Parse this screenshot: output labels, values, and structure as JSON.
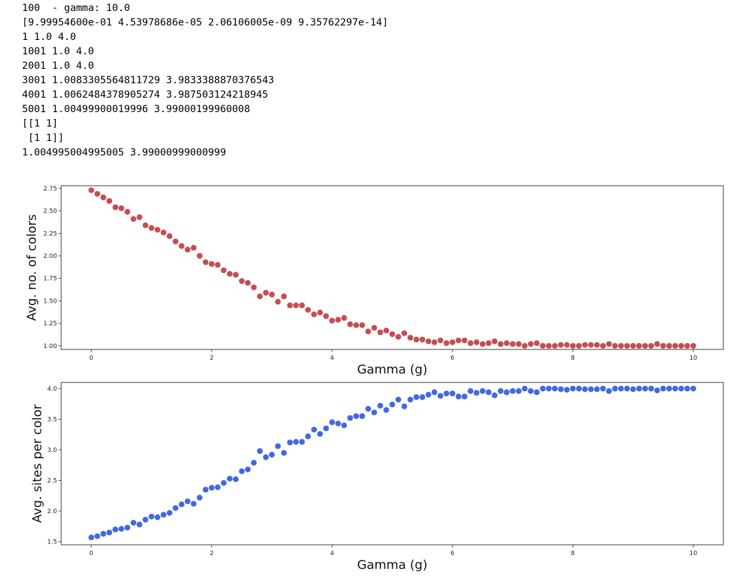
{
  "output_lines": [
    "100  - gamma: 10.0",
    "[9.99954600e-01 4.53978686e-05 2.06106005e-09 9.35762297e-14]",
    "1 1.0 4.0",
    "1001 1.0 4.0",
    "2001 1.0 4.0",
    "3001 1.0083305564811729 3.9833388870376543",
    "4001 1.0062484378905274 3.987503124218945",
    "5001 1.00499900019996 3.99000199960008",
    "[[1 1]",
    " [1 1]]",
    "1.004995004995005 3.99000999000999"
  ],
  "chart_data": [
    {
      "type": "scatter",
      "xlabel": "Gamma (g)",
      "ylabel": "Avg. no. of colors",
      "xlim": [
        -0.5,
        10.5
      ],
      "ylim": [
        0.96,
        2.78
      ],
      "xticks": [
        0,
        2,
        4,
        6,
        8,
        10
      ],
      "xtick_labels": [
        "0",
        "2",
        "4",
        "6",
        "8",
        "10"
      ],
      "yticks": [
        1.0,
        1.25,
        1.5,
        1.75,
        2.0,
        2.25,
        2.5,
        2.75
      ],
      "ytick_labels": [
        "1.00",
        "1.25",
        "1.50",
        "1.75",
        "2.00",
        "2.25",
        "2.50",
        "2.75"
      ],
      "grid": false,
      "color": "#c44e52",
      "x": [
        0.0,
        0.1,
        0.2,
        0.3,
        0.4,
        0.5,
        0.6,
        0.7,
        0.8,
        0.9,
        1.0,
        1.1,
        1.2,
        1.3,
        1.4,
        1.5,
        1.6,
        1.7,
        1.8,
        1.9,
        2.0,
        2.1,
        2.2,
        2.3,
        2.4,
        2.5,
        2.6,
        2.7,
        2.8,
        2.9,
        3.0,
        3.1,
        3.2,
        3.3,
        3.4,
        3.5,
        3.6,
        3.7,
        3.8,
        3.9,
        4.0,
        4.1,
        4.2,
        4.3,
        4.4,
        4.5,
        4.6,
        4.7,
        4.8,
        4.9,
        5.0,
        5.1,
        5.2,
        5.3,
        5.4,
        5.5,
        5.6,
        5.7,
        5.8,
        5.9,
        6.0,
        6.1,
        6.2,
        6.3,
        6.4,
        6.5,
        6.6,
        6.7,
        6.8,
        6.9,
        7.0,
        7.1,
        7.2,
        7.3,
        7.4,
        7.5,
        7.6,
        7.7,
        7.8,
        7.9,
        8.0,
        8.1,
        8.2,
        8.3,
        8.4,
        8.5,
        8.6,
        8.7,
        8.8,
        8.9,
        9.0,
        9.1,
        9.2,
        9.3,
        9.4,
        9.5,
        9.6,
        9.7,
        9.8,
        9.9,
        10.0
      ],
      "y": [
        2.73,
        2.69,
        2.65,
        2.61,
        2.54,
        2.53,
        2.49,
        2.41,
        2.43,
        2.34,
        2.31,
        2.29,
        2.26,
        2.22,
        2.16,
        2.11,
        2.07,
        2.09,
        2.0,
        1.93,
        1.91,
        1.9,
        1.84,
        1.8,
        1.79,
        1.72,
        1.7,
        1.65,
        1.55,
        1.59,
        1.57,
        1.49,
        1.55,
        1.45,
        1.45,
        1.45,
        1.4,
        1.35,
        1.37,
        1.33,
        1.28,
        1.29,
        1.31,
        1.24,
        1.23,
        1.23,
        1.16,
        1.2,
        1.15,
        1.17,
        1.13,
        1.1,
        1.14,
        1.09,
        1.07,
        1.07,
        1.05,
        1.04,
        1.06,
        1.03,
        1.04,
        1.06,
        1.06,
        1.03,
        1.04,
        1.02,
        1.03,
        1.05,
        1.02,
        1.03,
        1.02,
        1.02,
        1.0,
        1.02,
        1.03,
        1.0,
        1.0,
        1.0,
        1.01,
        1.01,
        1.0,
        1.0,
        1.01,
        1.01,
        1.01,
        1.0,
        1.02,
        1.0,
        1.0,
        1.0,
        1.0,
        1.0,
        1.0,
        1.0,
        1.02,
        1.0,
        1.0,
        1.0,
        1.0,
        1.0,
        1.0
      ]
    },
    {
      "type": "scatter",
      "xlabel": "Gamma (g)",
      "ylabel": "Avg. sites per color",
      "xlim": [
        -0.5,
        10.5
      ],
      "ylim": [
        1.45,
        4.1
      ],
      "xticks": [
        0,
        2,
        4,
        6,
        8,
        10
      ],
      "xtick_labels": [
        "0",
        "2",
        "4",
        "6",
        "8",
        "10"
      ],
      "yticks": [
        1.5,
        2.0,
        2.5,
        3.0,
        3.5,
        4.0
      ],
      "ytick_labels": [
        "1.5",
        "2.0",
        "2.5",
        "3.0",
        "3.5",
        "4.0"
      ],
      "grid": false,
      "color": "#4169e1",
      "x": [
        0.0,
        0.1,
        0.2,
        0.3,
        0.4,
        0.5,
        0.6,
        0.7,
        0.8,
        0.9,
        1.0,
        1.1,
        1.2,
        1.3,
        1.4,
        1.5,
        1.6,
        1.7,
        1.8,
        1.9,
        2.0,
        2.1,
        2.2,
        2.3,
        2.4,
        2.5,
        2.6,
        2.7,
        2.8,
        2.9,
        3.0,
        3.1,
        3.2,
        3.3,
        3.4,
        3.5,
        3.6,
        3.7,
        3.8,
        3.9,
        4.0,
        4.1,
        4.2,
        4.3,
        4.4,
        4.5,
        4.6,
        4.7,
        4.8,
        4.9,
        5.0,
        5.1,
        5.2,
        5.3,
        5.4,
        5.5,
        5.6,
        5.7,
        5.8,
        5.9,
        6.0,
        6.1,
        6.2,
        6.3,
        6.4,
        6.5,
        6.6,
        6.7,
        6.8,
        6.9,
        7.0,
        7.1,
        7.2,
        7.3,
        7.4,
        7.5,
        7.6,
        7.7,
        7.8,
        7.9,
        8.0,
        8.1,
        8.2,
        8.3,
        8.4,
        8.5,
        8.6,
        8.7,
        8.8,
        8.9,
        9.0,
        9.1,
        9.2,
        9.3,
        9.4,
        9.5,
        9.6,
        9.7,
        9.8,
        9.9,
        10.0
      ],
      "y": [
        1.57,
        1.59,
        1.63,
        1.65,
        1.7,
        1.71,
        1.73,
        1.81,
        1.78,
        1.86,
        1.91,
        1.9,
        1.94,
        1.97,
        2.05,
        2.11,
        2.16,
        2.12,
        2.22,
        2.35,
        2.38,
        2.39,
        2.46,
        2.53,
        2.52,
        2.65,
        2.68,
        2.79,
        2.98,
        2.88,
        2.92,
        3.06,
        2.95,
        3.12,
        3.13,
        3.13,
        3.22,
        3.33,
        3.26,
        3.35,
        3.45,
        3.43,
        3.4,
        3.52,
        3.55,
        3.55,
        3.67,
        3.61,
        3.72,
        3.65,
        3.74,
        3.82,
        3.71,
        3.82,
        3.86,
        3.86,
        3.9,
        3.94,
        3.88,
        3.92,
        3.92,
        3.87,
        3.87,
        3.96,
        3.93,
        3.96,
        3.94,
        3.89,
        3.96,
        3.94,
        3.96,
        3.96,
        4.0,
        3.96,
        3.94,
        4.0,
        4.0,
        4.0,
        3.99,
        3.98,
        4.0,
        4.0,
        3.99,
        3.99,
        3.99,
        4.0,
        3.96,
        4.0,
        4.0,
        4.0,
        3.99,
        4.0,
        4.0,
        4.0,
        3.97,
        4.0,
        4.0,
        4.0,
        4.0,
        4.0,
        4.0
      ]
    }
  ]
}
